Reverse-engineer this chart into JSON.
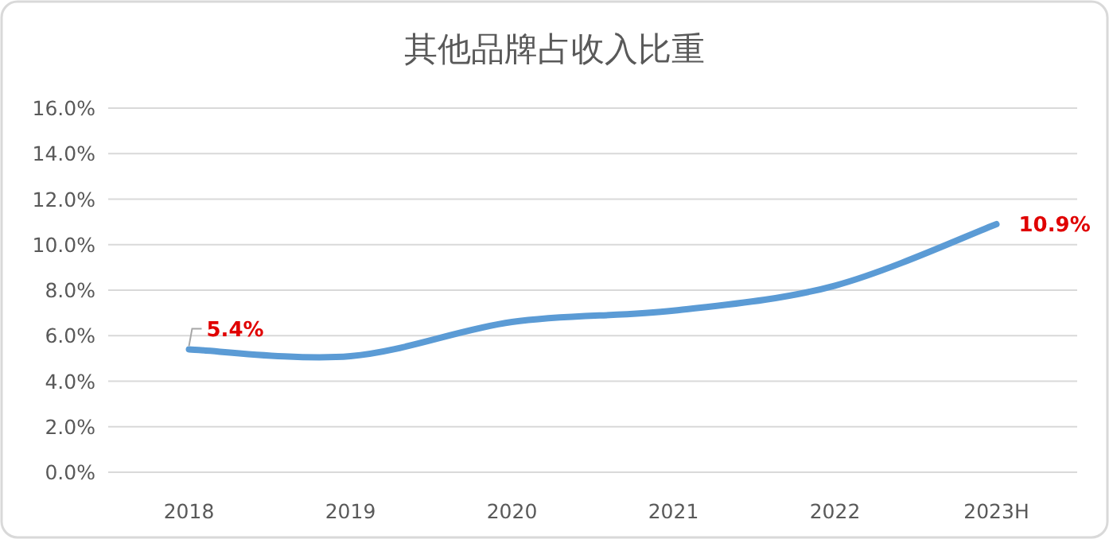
{
  "chart_data": {
    "type": "line",
    "title": "其他品牌占收入比重",
    "categories": [
      "2018",
      "2019",
      "2020",
      "2021",
      "2022",
      "2023H"
    ],
    "series": [
      {
        "color": "#5b9bd5",
        "values": [
          5.4,
          5.1,
          6.6,
          7.1,
          8.2,
          10.9
        ],
        "value_labels": [
          "5.4%",
          null,
          null,
          null,
          null,
          "10.9%"
        ]
      }
    ],
    "ylim": [
      0,
      16
    ],
    "yticks": [
      {
        "value": 0,
        "label": "0.0%"
      },
      {
        "value": 2,
        "label": "2.0%"
      },
      {
        "value": 4,
        "label": "4.0%"
      },
      {
        "value": 6,
        "label": "6.0%"
      },
      {
        "value": 8,
        "label": "8.0%"
      },
      {
        "value": 10,
        "label": "10.0%"
      },
      {
        "value": 12,
        "label": "12.0%"
      },
      {
        "value": 14,
        "label": "14.0%"
      },
      {
        "value": 16,
        "label": "16.0%"
      }
    ],
    "grid": "y"
  }
}
